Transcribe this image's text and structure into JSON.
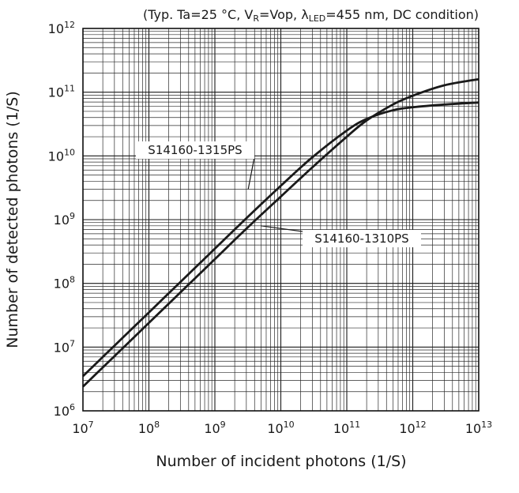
{
  "chart_data": {
    "type": "line",
    "condition": {
      "prefix": "(Typ. Ta=25 °C, V",
      "vr_sub": "R",
      "vop": "=Vop, λ",
      "led_sub": "LED",
      "suffix": "=455 nm, DC condition)"
    },
    "xlabel": "Number of incident photons (1/S)",
    "ylabel": "Number of detected photons (1/S)",
    "x_scale": "log",
    "y_scale": "log",
    "xlim": [
      10000000.0,
      10000000000000.0
    ],
    "ylim": [
      1000000.0,
      1000000000000.0
    ],
    "grid": true,
    "x_ticks": [
      {
        "base": "10",
        "exp": "7"
      },
      {
        "base": "10",
        "exp": "8"
      },
      {
        "base": "10",
        "exp": "9"
      },
      {
        "base": "10",
        "exp": "10"
      },
      {
        "base": "10",
        "exp": "11"
      },
      {
        "base": "10",
        "exp": "12"
      },
      {
        "base": "10",
        "exp": "13"
      }
    ],
    "y_ticks": [
      {
        "base": "10",
        "exp": "6"
      },
      {
        "base": "10",
        "exp": "7"
      },
      {
        "base": "10",
        "exp": "8"
      },
      {
        "base": "10",
        "exp": "9"
      },
      {
        "base": "10",
        "exp": "10"
      },
      {
        "base": "10",
        "exp": "11"
      },
      {
        "base": "10",
        "exp": "12"
      }
    ],
    "series": [
      {
        "name": "S14160-1315PS",
        "x": [
          10000000.0,
          30000000.0,
          100000000.0,
          300000000.0,
          1000000000.0,
          3000000000.0,
          10000000000.0,
          30000000000.0,
          100000000000.0,
          200000000000.0,
          500000000000.0,
          1000000000000.0,
          3000000000000.0,
          10000000000000.0
        ],
        "y": [
          3500000.0,
          10500000.0,
          35000000.0,
          105000000.0,
          350000000.0,
          1050000000.0,
          3400000000.0,
          9500000000.0,
          25000000000.0,
          38000000000.0,
          52000000000.0,
          58000000000.0,
          64000000000.0,
          69000000000.0
        ]
      },
      {
        "name": "S14160-1310PS",
        "x": [
          10000000.0,
          30000000.0,
          100000000.0,
          300000000.0,
          1000000000.0,
          3000000000.0,
          10000000000.0,
          30000000000.0,
          100000000000.0,
          200000000000.0,
          500000000000.0,
          1000000000000.0,
          3000000000000.0,
          10000000000000.0
        ],
        "y": [
          2400000.0,
          7200000.0,
          24000000.0,
          72000000.0,
          240000000.0,
          720000000.0,
          2300000000.0,
          6600000000.0,
          20000000000.0,
          36000000000.0,
          64000000000.0,
          88000000000.0,
          128000000000.0,
          160000000000.0
        ]
      }
    ],
    "annotations": [
      {
        "series": "S14160-1315PS",
        "text": "S14160-1315PS",
        "point": [
          3200000000.0,
          3000000000.0
        ]
      },
      {
        "series": "S14160-1310PS",
        "text": "S14160-1310PS",
        "point": [
          5000000000.0,
          800000000.0
        ]
      }
    ]
  }
}
